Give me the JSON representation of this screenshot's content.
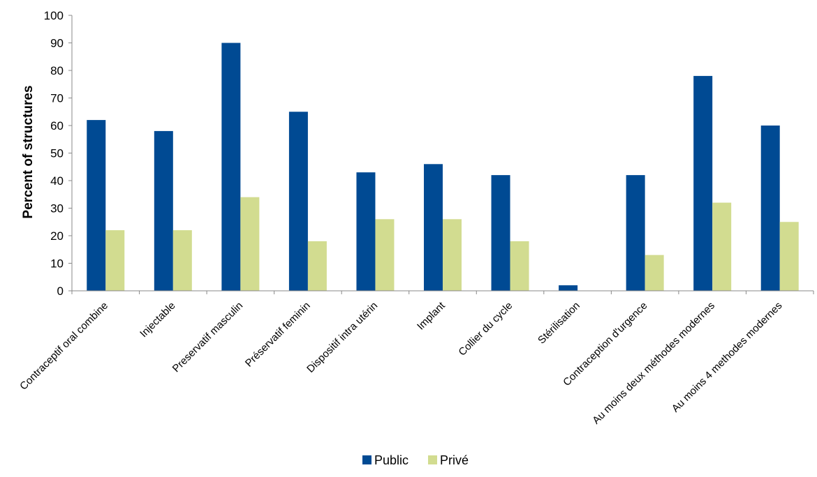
{
  "chart_data": {
    "type": "bar",
    "ylabel": "Percent of structures",
    "ylim": [
      0,
      100
    ],
    "yticks": [
      0,
      10,
      20,
      30,
      40,
      50,
      60,
      70,
      80,
      90,
      100
    ],
    "grid": false,
    "legend_position": "bottom",
    "categories": [
      "Contraceptif oral combine",
      "Injectable",
      "Preservatif masculin",
      "Préservatif feminin",
      "Dispositif intra utérin",
      "Implant",
      "Collier du cycle",
      "Stérilisation",
      "Contraception d'urgence",
      "Au moins deux méthodes modernes",
      "Au moins 4 methodes modernes"
    ],
    "series": [
      {
        "name": "Public",
        "color": "#004a93",
        "values": [
          62,
          58,
          90,
          65,
          43,
          46,
          42,
          2,
          42,
          78,
          60
        ]
      },
      {
        "name": "Privé",
        "color": "#d2dc90",
        "values": [
          22,
          22,
          34,
          18,
          26,
          26,
          18,
          0,
          13,
          32,
          25
        ]
      }
    ]
  }
}
